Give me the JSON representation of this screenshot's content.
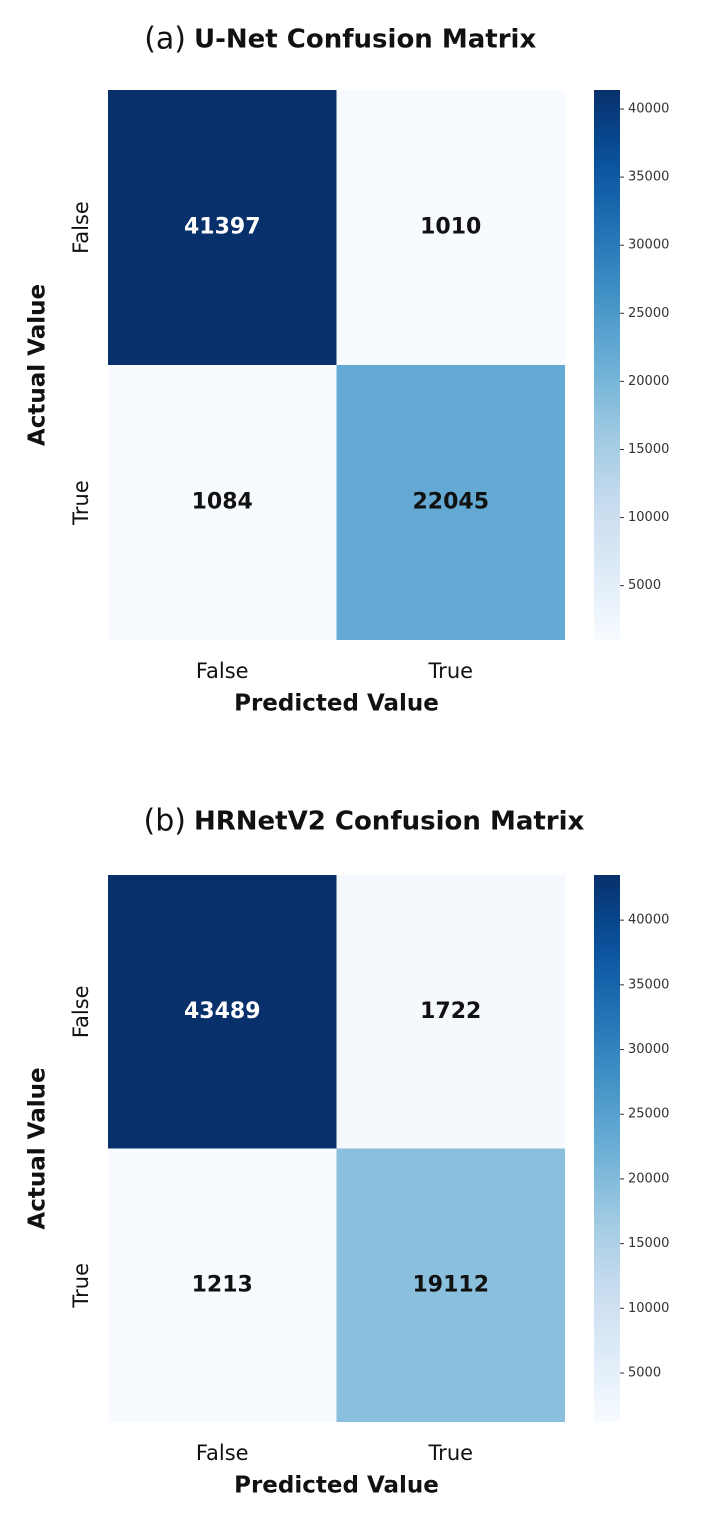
{
  "chart_data": [
    {
      "type": "heatmap",
      "panel_label": "(a)",
      "title": "U-Net Confusion Matrix",
      "x_categories": [
        "False",
        "True"
      ],
      "y_categories": [
        "False",
        "True"
      ],
      "values": [
        [
          41397,
          1010
        ],
        [
          1084,
          22045
        ]
      ],
      "xlabel": "Predicted Value",
      "ylabel": "Actual Value",
      "colormap": "Blues",
      "clim": [
        1010,
        41397
      ],
      "cticks": [
        5000,
        10000,
        15000,
        20000,
        25000,
        30000,
        35000,
        40000
      ]
    },
    {
      "type": "heatmap",
      "panel_label": "(b)",
      "title": "HRNetV2 Confusion Matrix",
      "x_categories": [
        "False",
        "True"
      ],
      "y_categories": [
        "False",
        "True"
      ],
      "values": [
        [
          43489,
          1722
        ],
        [
          1213,
          19112
        ]
      ],
      "xlabel": "Predicted Value",
      "ylabel": "Actual Value",
      "colormap": "Blues",
      "clim": [
        1213,
        43489
      ],
      "cticks": [
        5000,
        10000,
        15000,
        20000,
        25000,
        30000,
        35000,
        40000
      ]
    }
  ]
}
